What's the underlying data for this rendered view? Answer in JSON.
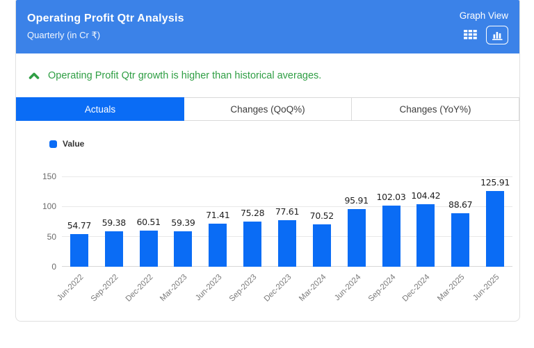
{
  "header": {
    "title": "Operating Profit Qtr Analysis",
    "subtitle": "Quarterly (in Cr ₹)",
    "view_label": "Graph View"
  },
  "insight": {
    "text": "Operating Profit Qtr growth is higher than historical averages."
  },
  "tabs": [
    {
      "label": "Actuals",
      "active": true
    },
    {
      "label": "Changes (QoQ%)",
      "active": false
    },
    {
      "label": "Changes (YoY%)",
      "active": false
    }
  ],
  "legend": {
    "label": "Value"
  },
  "chart_data": {
    "type": "bar",
    "title": "Operating Profit Qtr Analysis",
    "series_name": "Value",
    "categories": [
      "Jun-2022",
      "Sep-2022",
      "Dec-2022",
      "Mar-2023",
      "Jun-2023",
      "Sep-2023",
      "Dec-2023",
      "Mar-2024",
      "Jun-2024",
      "Sep-2024",
      "Dec-2024",
      "Mar-2025",
      "Jun-2025"
    ],
    "values": [
      54.77,
      59.38,
      60.51,
      59.39,
      71.41,
      75.28,
      77.61,
      70.52,
      95.91,
      102.03,
      104.42,
      88.67,
      125.91
    ],
    "xlabel": "",
    "ylabel": "",
    "ylim": [
      0,
      150
    ],
    "yticks": [
      0,
      50,
      100,
      150
    ],
    "grid": true,
    "legend_position": "top-left"
  },
  "colors": {
    "header_blue": "#3b82e8",
    "accent_blue": "#0a6cf5",
    "insight_green": "#2f9e44",
    "bar_blue": "#0a6cf5"
  }
}
